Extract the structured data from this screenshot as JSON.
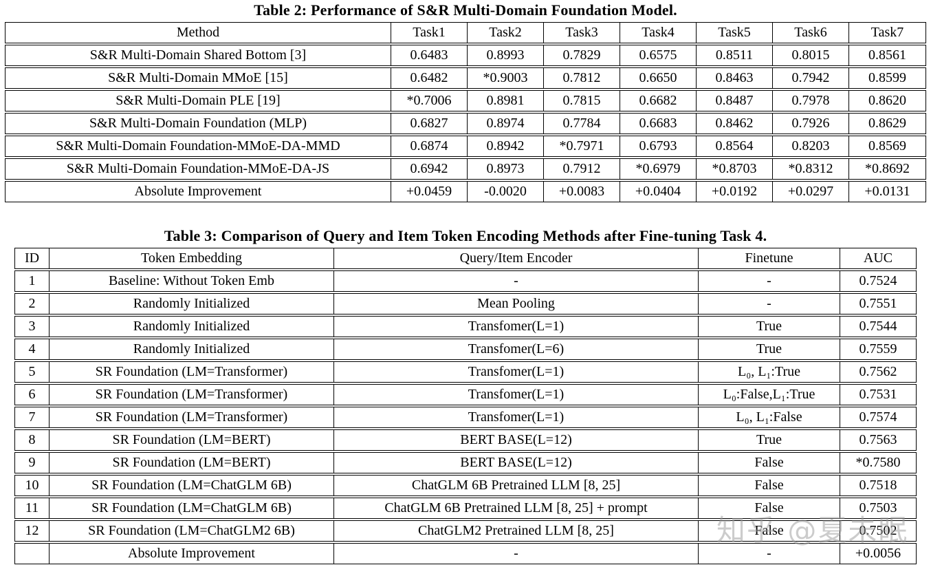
{
  "table2": {
    "title": "Table 2: Performance of S&R Multi-Domain Foundation Model.",
    "columns": [
      "Method",
      "Task1",
      "Task2",
      "Task3",
      "Task4",
      "Task5",
      "Task6",
      "Task7"
    ],
    "rows": [
      [
        "S&R Multi-Domain Shared Bottom [3]",
        "0.6483",
        "0.8993",
        "0.7829",
        "0.6575",
        "0.8511",
        "0.8015",
        "0.8561"
      ],
      [
        "S&R Multi-Domain MMoE [15]",
        "0.6482",
        "*0.9003",
        "0.7812",
        "0.6650",
        "0.8463",
        "0.7942",
        "0.8599"
      ],
      [
        "S&R Multi-Domain PLE [19]",
        "*0.7006",
        "0.8981",
        "0.7815",
        "0.6682",
        "0.8487",
        "0.7978",
        "0.8620"
      ],
      [
        "S&R Multi-Domain Foundation (MLP)",
        "0.6827",
        "0.8974",
        "0.7784",
        "0.6683",
        "0.8462",
        "0.7926",
        "0.8629"
      ],
      [
        "S&R Multi-Domain Foundation-MMoE-DA-MMD",
        "0.6874",
        "0.8942",
        "*0.7971",
        "0.6793",
        "0.8564",
        "0.8203",
        "0.8569"
      ],
      [
        "S&R Multi-Domain Foundation-MMoE-DA-JS",
        "0.6942",
        "0.8973",
        "0.7912",
        "*0.6979",
        "*0.8703",
        "*0.8312",
        "*0.8692"
      ],
      [
        "Absolute Improvement",
        "+0.0459",
        "-0.0020",
        "+0.0083",
        "+0.0404",
        "+0.0192",
        "+0.0297",
        "+0.0131"
      ]
    ]
  },
  "table3": {
    "title": "Table 3: Comparison of Query and Item Token Encoding Methods after Fine-tuning Task 4.",
    "columns": [
      "ID",
      "Token Embedding",
      "Query/Item Encoder",
      "Finetune",
      "AUC"
    ],
    "rows": [
      [
        "1",
        "Baseline: Without Token Emb",
        "-",
        "-",
        "0.7524"
      ],
      [
        "2",
        "Randomly Initialized",
        "Mean Pooling",
        "-",
        "0.7551"
      ],
      [
        "3",
        "Randomly Initialized",
        "Transfomer(L=1)",
        "True",
        "0.7544"
      ],
      [
        "4",
        "Randomly Initialized",
        "Transfomer(L=6)",
        "True",
        "0.7559"
      ],
      [
        "5",
        "SR Foundation (LM=Transformer)",
        "Transfomer(L=1)",
        "L₀, L₁:True",
        "0.7562"
      ],
      [
        "6",
        "SR Foundation (LM=Transformer)",
        "Transfomer(L=1)",
        "L₀:False,L₁:True",
        "0.7531"
      ],
      [
        "7",
        "SR Foundation (LM=Transformer)",
        "Transfomer(L=1)",
        "L₀, L₁:False",
        "0.7574"
      ],
      [
        "8",
        "SR Foundation (LM=BERT)",
        "BERT BASE(L=12)",
        "True",
        "0.7563"
      ],
      [
        "9",
        "SR Foundation (LM=BERT)",
        "BERT BASE(L=12)",
        "False",
        "*0.7580"
      ],
      [
        "10",
        "SR Foundation (LM=ChatGLM 6B)",
        "ChatGLM 6B Pretrained LLM [8, 25]",
        "False",
        "0.7518"
      ],
      [
        "11",
        "SR Foundation (LM=ChatGLM 6B)",
        "ChatGLM 6B Pretrained LLM [8, 25] + prompt",
        "False",
        "0.7503"
      ],
      [
        "12",
        "SR Foundation (LM=ChatGLM2 6B)",
        "ChatGLM2 Pretrained LLM [8, 25]",
        "False",
        "0.7502"
      ],
      [
        "",
        "Absolute Improvement",
        "-",
        "-",
        "+0.0056"
      ]
    ]
  },
  "watermark": {
    "text": "知乎 @夏未眠",
    "color": "#9a9a9a"
  }
}
